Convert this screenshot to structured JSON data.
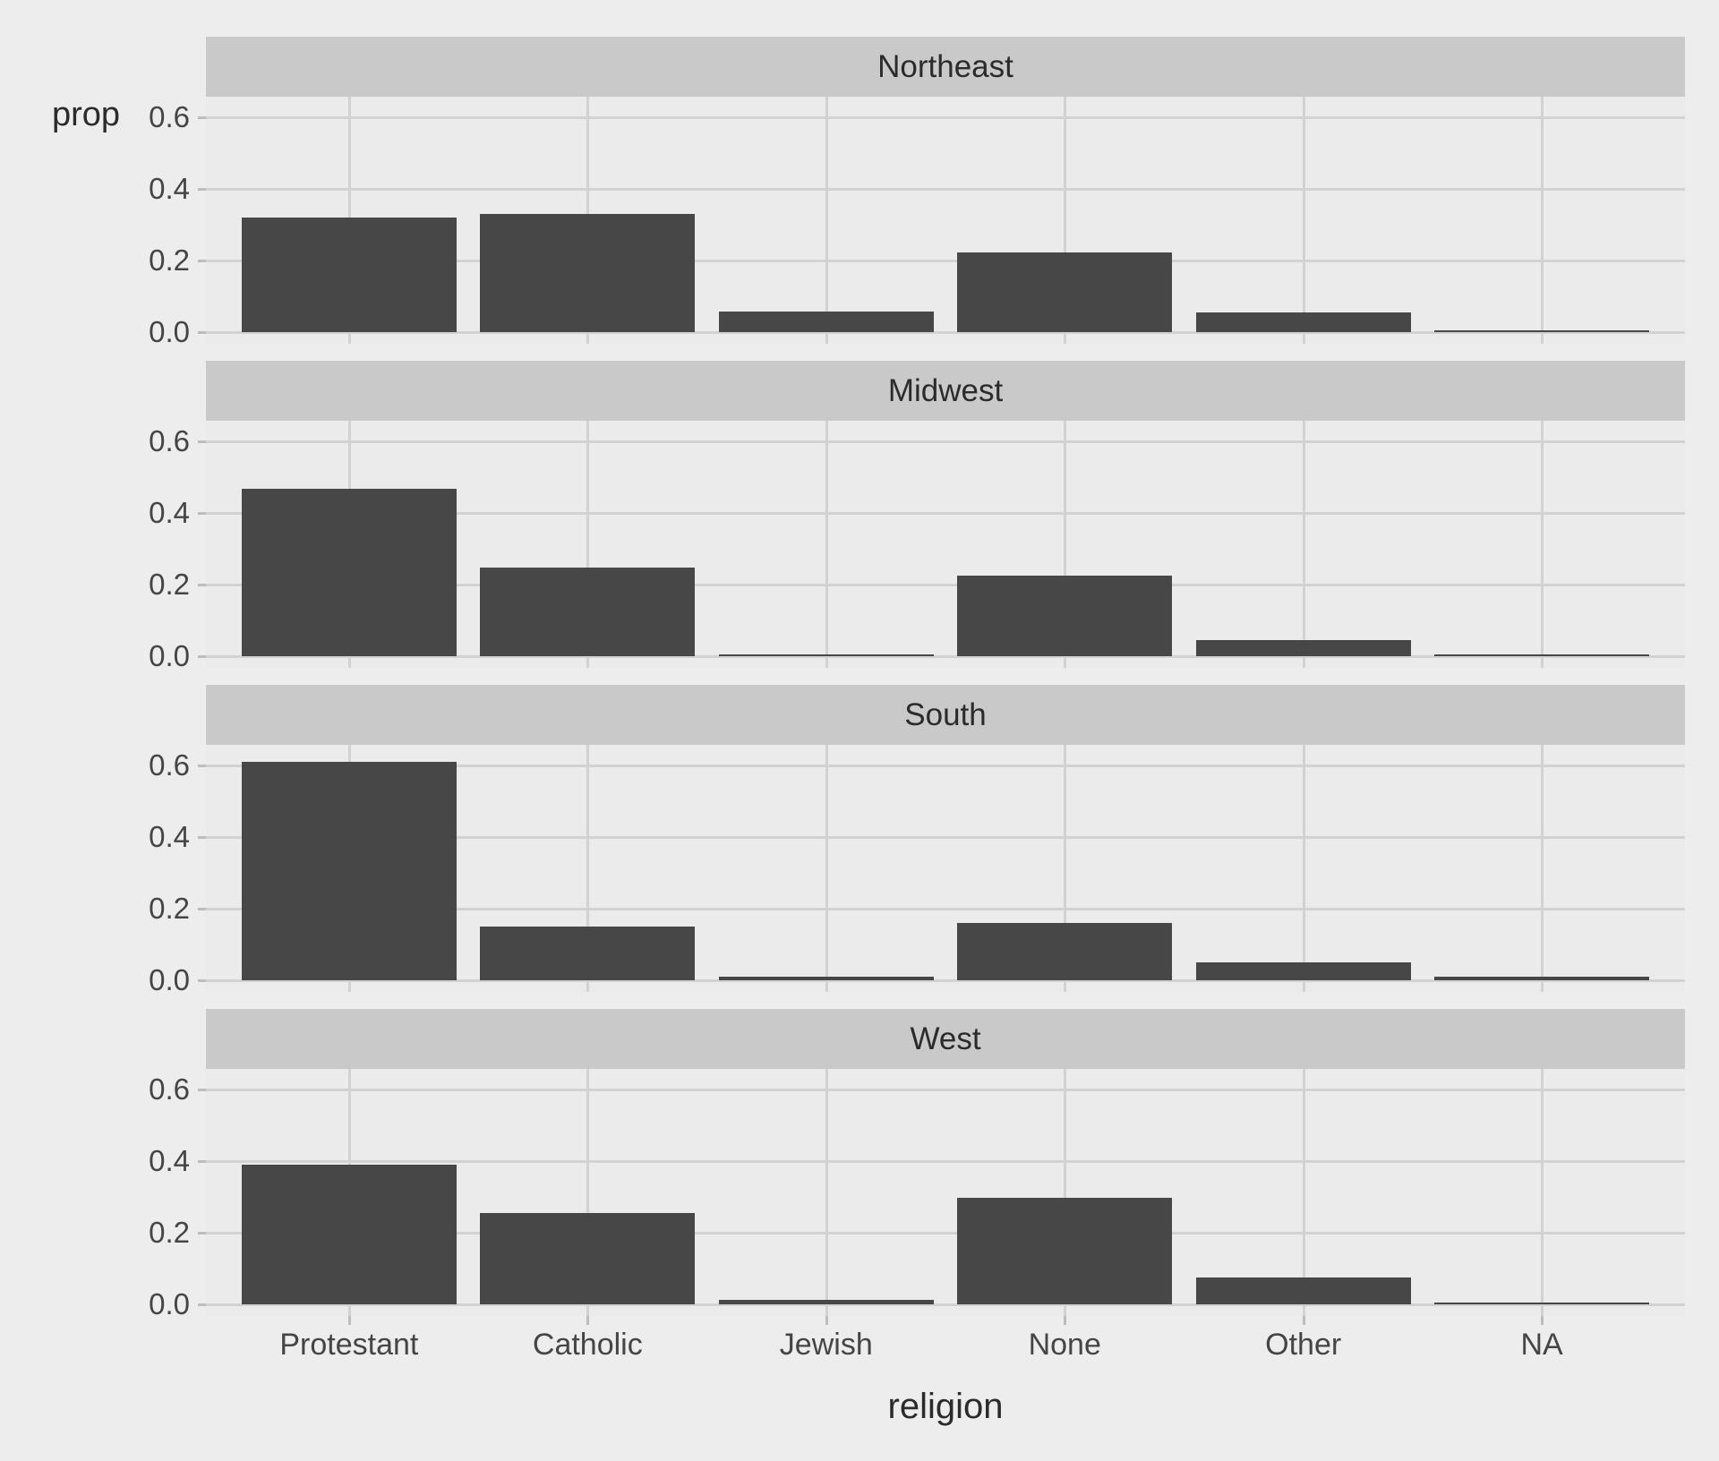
{
  "chart_data": {
    "type": "bar",
    "title": "",
    "xlabel": "religion",
    "ylabel": "prop",
    "facet_variable": "region",
    "categories": [
      "Protestant",
      "Catholic",
      "Jewish",
      "None",
      "Other",
      "NA"
    ],
    "series": [
      {
        "name": "Northeast",
        "values": [
          0.32,
          0.33,
          0.057,
          0.223,
          0.055,
          0.004
        ]
      },
      {
        "name": "Midwest",
        "values": [
          0.468,
          0.248,
          0.006,
          0.226,
          0.046,
          0.005
        ]
      },
      {
        "name": "South",
        "values": [
          0.61,
          0.151,
          0.01,
          0.16,
          0.049,
          0.011
        ]
      },
      {
        "name": "West",
        "values": [
          0.39,
          0.255,
          0.012,
          0.297,
          0.074,
          0.004
        ]
      }
    ],
    "y_ticks": [
      0.0,
      0.2,
      0.4,
      0.6
    ],
    "y_tick_labels": [
      "0.0",
      "0.2",
      "0.4",
      "0.6"
    ],
    "ylim": [
      -0.0325,
      0.6575
    ],
    "grid": true,
    "legend": "none",
    "facet_layout": "stacked-rows"
  },
  "colors": {
    "page_background": "#ededed",
    "panel_background": "#ebebeb",
    "strip_background": "#c9c9c9",
    "gridline": "#d2d2d2",
    "bar_fill": "#474747",
    "tick_mark": "#bdbdbd",
    "tick_text": "#454545",
    "title_text": "#2b2b2b"
  }
}
